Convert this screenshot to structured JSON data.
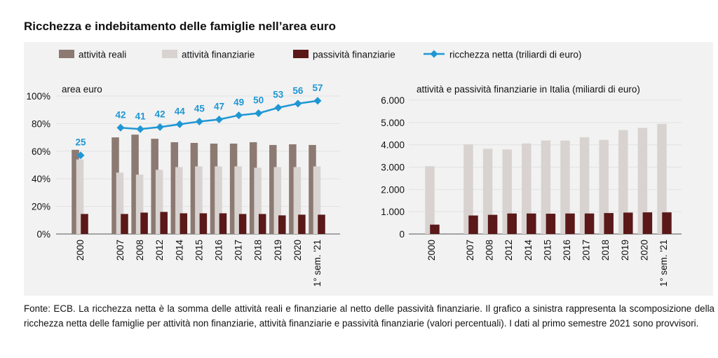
{
  "title": "Ricchezza e indebitamento delle famiglie nell’area euro",
  "footer": "Fonte: ECB. La ricchezza netta è la somma delle attività reali e finanziarie al netto delle passività finanziarie. Il grafico a sinistra rappresenta la scomposizione della ricchezza netta delle famiglie per attività non finanziarie, attività finanziarie e passività finanziarie (valori percentuali). I dati al primo semestre 2021 sono provvisori.",
  "colors": {
    "real": "#8c7a72",
    "financial": "#d8d3d0",
    "liabilities": "#5a1818",
    "net": "#1f97d4",
    "panel": "#f2f2f2"
  },
  "legend": [
    {
      "label": "attività reali",
      "type": "box",
      "color": "#8c7a72"
    },
    {
      "label": "attività finanziarie",
      "type": "box",
      "color": "#d8d3d0"
    },
    {
      "label": "passività finanziarie",
      "type": "box",
      "color": "#5a1818"
    },
    {
      "label": "ricchezza netta (triliardi di euro)",
      "type": "line-marker",
      "color": "#1f97d4"
    }
  ],
  "chart_data": [
    {
      "type": "bar",
      "subtitle": "area euro",
      "categories": [
        "2000",
        "2007",
        "2008",
        "2012",
        "2014",
        "2015",
        "2016",
        "2017",
        "2018",
        "2019",
        "2020",
        "1° sem. '21"
      ],
      "series": [
        {
          "name": "attività reali",
          "values": [
            61,
            70,
            72,
            69,
            66.5,
            66,
            65.5,
            65.5,
            66.5,
            64.5,
            65,
            64.5
          ]
        },
        {
          "name": "attività finanziarie",
          "values": [
            54,
            44.5,
            43,
            46.5,
            48.5,
            49,
            49,
            49,
            48,
            48.5,
            48.5,
            49
          ]
        },
        {
          "name": "passività finanziarie",
          "values": [
            14.5,
            14.5,
            15.5,
            16,
            15,
            15,
            15,
            14.5,
            14.5,
            13.5,
            14,
            14
          ]
        },
        {
          "name": "ricchezza netta (triliardi di euro)",
          "type": "line",
          "values": [
            57,
            77,
            76,
            77.5,
            79.5,
            81.5,
            83,
            86,
            87.5,
            91.5,
            94.5,
            96.5
          ],
          "labels": [
            25,
            42,
            41,
            42,
            44,
            45,
            47,
            49,
            50,
            53,
            56,
            57
          ]
        }
      ],
      "y_ticks": [
        "0%",
        "20%",
        "40%",
        "60%",
        "80%",
        "100%"
      ],
      "ylim": [
        0,
        100
      ],
      "grid": true
    },
    {
      "type": "bar",
      "subtitle": "attività  e passività finanziarie  in Italia (miliardi di euro)",
      "categories": [
        "2000",
        "2007",
        "2008",
        "2012",
        "2014",
        "2015",
        "2016",
        "2017",
        "2018",
        "2019",
        "2020",
        "1° sem. '21"
      ],
      "series": [
        {
          "name": "attività finanziarie",
          "values": [
            3040,
            4020,
            3820,
            3790,
            4060,
            4190,
            4190,
            4340,
            4220,
            4660,
            4760,
            4940
          ]
        },
        {
          "name": "passività finanziarie",
          "values": [
            420,
            830,
            860,
            920,
            920,
            910,
            920,
            920,
            940,
            960,
            970,
            970
          ]
        }
      ],
      "y_ticks": [
        "0",
        "1.000",
        "2.000",
        "3.000",
        "4.000",
        "5.000",
        "6.000"
      ],
      "ylim": [
        0,
        6000
      ],
      "grid": true
    }
  ]
}
